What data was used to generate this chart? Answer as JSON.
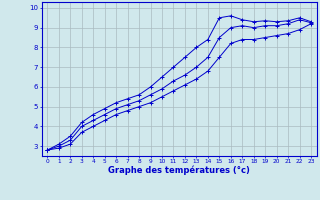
{
  "xlabel": "Graphe des températures (°c)",
  "bg_color": "#d0e8ec",
  "line_color": "#0000cc",
  "grid_color": "#aabbc0",
  "xlim": [
    -0.5,
    23.5
  ],
  "ylim": [
    2.5,
    10.3
  ],
  "xticks": [
    0,
    1,
    2,
    3,
    4,
    5,
    6,
    7,
    8,
    9,
    10,
    11,
    12,
    13,
    14,
    15,
    16,
    17,
    18,
    19,
    20,
    21,
    22,
    23
  ],
  "yticks": [
    3,
    4,
    5,
    6,
    7,
    8,
    9,
    10
  ],
  "lines": [
    [
      2.8,
      3.1,
      3.5,
      4.2,
      4.6,
      4.9,
      5.2,
      5.4,
      5.6,
      6.0,
      6.5,
      7.0,
      7.5,
      8.0,
      8.4,
      9.5,
      9.6,
      9.4,
      9.3,
      9.35,
      9.3,
      9.35,
      9.5,
      9.3
    ],
    [
      2.8,
      3.0,
      3.3,
      4.0,
      4.3,
      4.6,
      4.9,
      5.1,
      5.3,
      5.6,
      5.9,
      6.3,
      6.6,
      7.0,
      7.5,
      8.5,
      9.0,
      9.1,
      9.0,
      9.1,
      9.1,
      9.2,
      9.4,
      9.25
    ],
    [
      2.8,
      2.9,
      3.1,
      3.7,
      4.0,
      4.3,
      4.6,
      4.8,
      5.0,
      5.2,
      5.5,
      5.8,
      6.1,
      6.4,
      6.8,
      7.5,
      8.2,
      8.4,
      8.4,
      8.5,
      8.6,
      8.7,
      8.9,
      9.2
    ]
  ]
}
